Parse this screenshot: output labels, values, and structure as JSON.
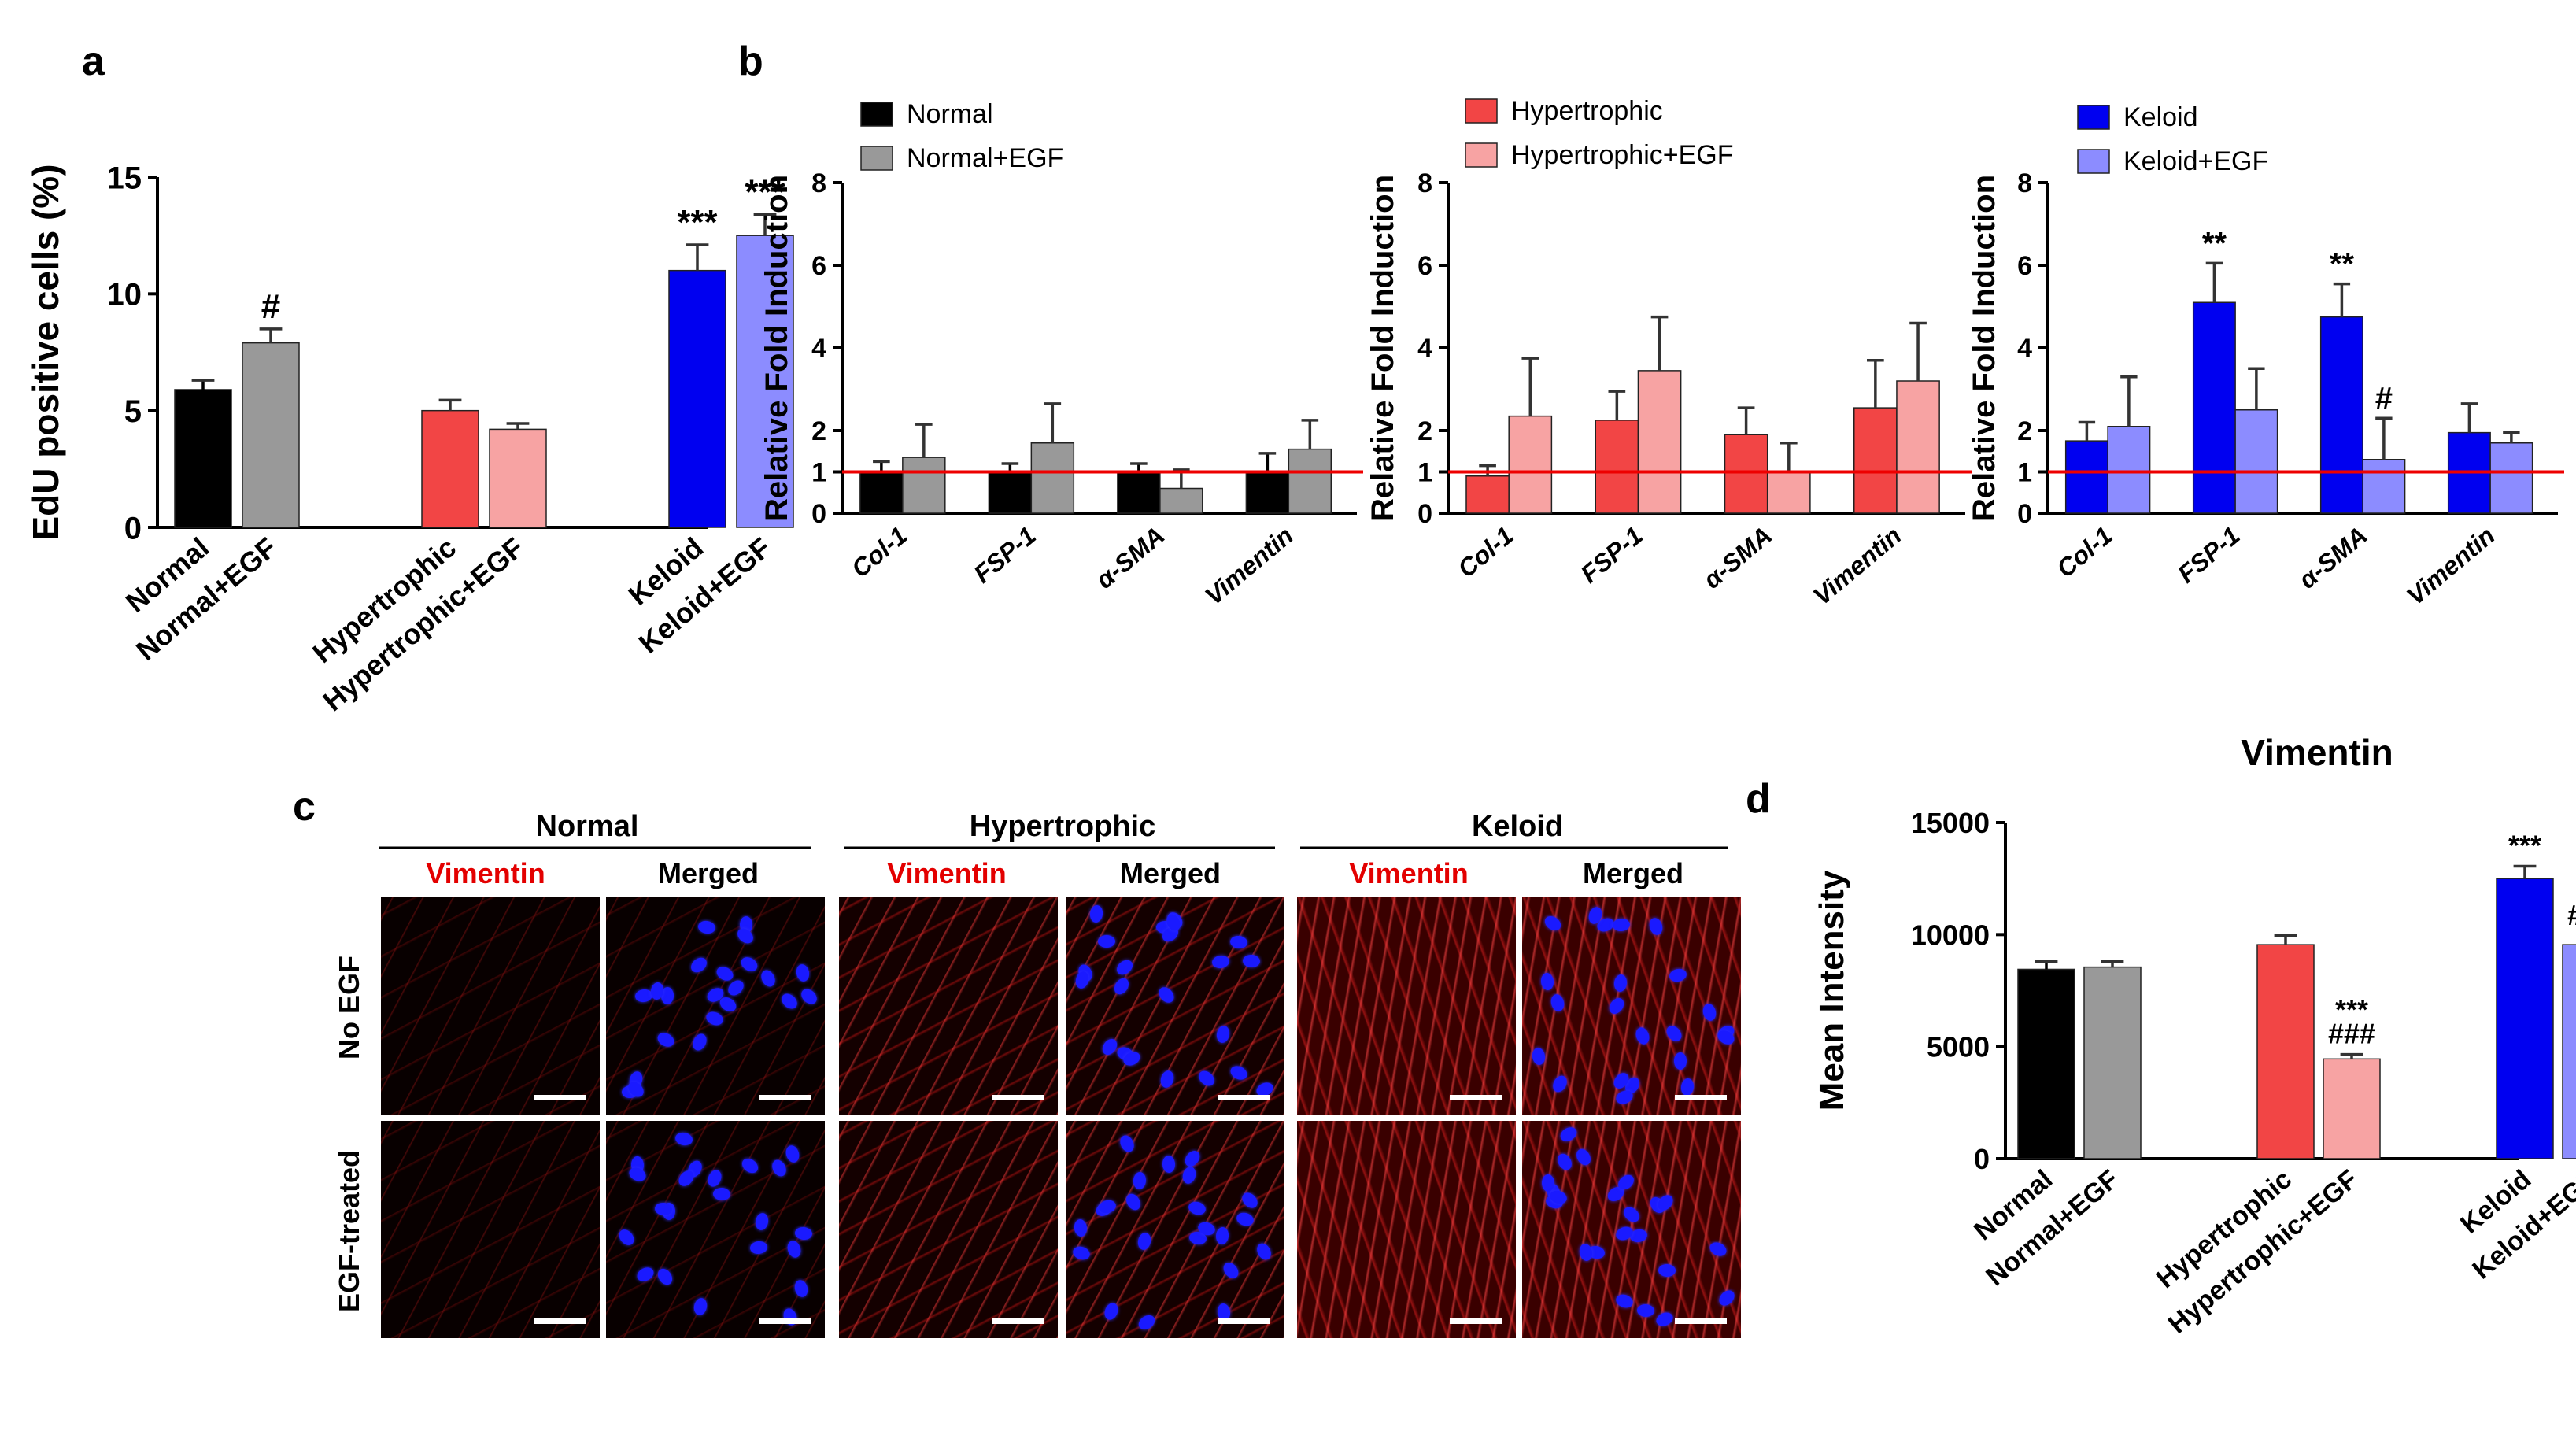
{
  "panel_labels": {
    "a": "a",
    "b": "b",
    "c": "c",
    "d": "d"
  },
  "colors": {
    "normal": "#000000",
    "normal_egf": "#999999",
    "hypertrophic": "#f24545",
    "hypertrophic_egf": "#f7a3a3",
    "keloid": "#0000f0",
    "keloid_egf": "#8c8cff",
    "reference_line": "#ee0000"
  },
  "chart_data": [
    {
      "id": "a",
      "type": "bar",
      "title": "",
      "xlabel": "",
      "ylabel": "EdU positive cells (%)",
      "ylim": [
        0,
        15
      ],
      "yticks": [
        "0",
        "5",
        "10",
        "15"
      ],
      "categories": [
        "Normal",
        "Normal+EGF",
        "Hypertrophic",
        "Hypertrophic+EGF",
        "Keloid",
        "Keloid+EGF"
      ],
      "values": [
        5.9,
        7.9,
        5.0,
        4.2,
        11.0,
        12.5
      ],
      "errors": [
        0.4,
        0.6,
        0.45,
        0.25,
        1.1,
        0.9
      ],
      "annotations": [
        "",
        "#",
        "",
        "",
        "***",
        "***"
      ],
      "color_keys": [
        "normal",
        "normal_egf",
        "hypertrophic",
        "hypertrophic_egf",
        "keloid",
        "keloid_egf"
      ]
    },
    {
      "id": "b1",
      "type": "bar",
      "ylabel": "Relative Fold Induction",
      "ylim": [
        0,
        8
      ],
      "yticks": [
        "0",
        "1",
        "2",
        "4",
        "6",
        "8"
      ],
      "categories": [
        "Col-1",
        "FSP-1",
        "α-SMA",
        "Vimentin"
      ],
      "reference_line": 1,
      "series": [
        {
          "name": "Normal",
          "color_key": "normal",
          "values": [
            1.0,
            1.0,
            1.0,
            1.0
          ],
          "errors": [
            0.25,
            0.2,
            0.2,
            0.45
          ],
          "annotations": [
            "",
            "",
            "",
            ""
          ]
        },
        {
          "name": "Normal+EGF",
          "color_key": "normal_egf",
          "values": [
            1.35,
            1.7,
            0.6,
            1.55
          ],
          "errors": [
            0.8,
            0.95,
            0.45,
            0.7
          ],
          "annotations": [
            "",
            "",
            "",
            ""
          ]
        }
      ]
    },
    {
      "id": "b2",
      "type": "bar",
      "ylabel": "Relative Fold Induction",
      "ylim": [
        0,
        8
      ],
      "yticks": [
        "0",
        "1",
        "2",
        "4",
        "6",
        "8"
      ],
      "categories": [
        "Col-1",
        "FSP-1",
        "α-SMA",
        "Vimentin"
      ],
      "reference_line": 1,
      "series": [
        {
          "name": "Hypertrophic",
          "color_key": "hypertrophic",
          "values": [
            0.9,
            2.25,
            1.9,
            2.55
          ],
          "errors": [
            0.25,
            0.7,
            0.65,
            1.15
          ],
          "annotations": [
            "",
            "",
            "",
            ""
          ]
        },
        {
          "name": "Hypertrophic+EGF",
          "color_key": "hypertrophic_egf",
          "values": [
            2.35,
            3.45,
            1.0,
            3.2
          ],
          "errors": [
            1.4,
            1.3,
            0.7,
            1.4
          ],
          "annotations": [
            "",
            "",
            "",
            ""
          ]
        }
      ]
    },
    {
      "id": "b3",
      "type": "bar",
      "ylabel": "Relative Fold Induction",
      "ylim": [
        0,
        8
      ],
      "yticks": [
        "0",
        "1",
        "2",
        "4",
        "6",
        "8"
      ],
      "categories": [
        "Col-1",
        "FSP-1",
        "α-SMA",
        "Vimentin"
      ],
      "reference_line": 1,
      "series": [
        {
          "name": "Keloid",
          "color_key": "keloid",
          "values": [
            1.75,
            5.1,
            4.75,
            1.95
          ],
          "errors": [
            0.45,
            0.95,
            0.8,
            0.7
          ],
          "annotations": [
            "",
            "**",
            "**",
            ""
          ]
        },
        {
          "name": "Keloid+EGF",
          "color_key": "keloid_egf",
          "values": [
            2.1,
            2.5,
            1.3,
            1.7
          ],
          "errors": [
            1.2,
            1.0,
            1.0,
            0.25
          ],
          "annotations": [
            "",
            "",
            "#",
            ""
          ]
        }
      ]
    },
    {
      "id": "d",
      "type": "bar",
      "title": "Vimentin",
      "ylabel": "Mean Intensity",
      "ylim": [
        0,
        15000
      ],
      "yticks": [
        "0",
        "5000",
        "10000",
        "15000"
      ],
      "categories": [
        "Normal",
        "Normal+EGF",
        "Hypertrophic",
        "Hypertrophic+EGF",
        "Keloid",
        "Keloid+EGF"
      ],
      "values": [
        8450,
        8550,
        9550,
        4450,
        12500,
        9550
      ],
      "errors": [
        350,
        250,
        400,
        200,
        550,
        400
      ],
      "annotations": [
        "",
        "",
        "",
        "***\n###",
        "***",
        "###"
      ],
      "color_keys": [
        "normal",
        "normal_egf",
        "hypertrophic",
        "hypertrophic_egf",
        "keloid",
        "keloid_egf"
      ]
    }
  ],
  "panel_c": {
    "groups": [
      "Normal",
      "Hypertrophic",
      "Keloid"
    ],
    "columns": [
      "Vimentin",
      "Merged"
    ],
    "rows": [
      "No EGF",
      "EGF-treated"
    ]
  }
}
